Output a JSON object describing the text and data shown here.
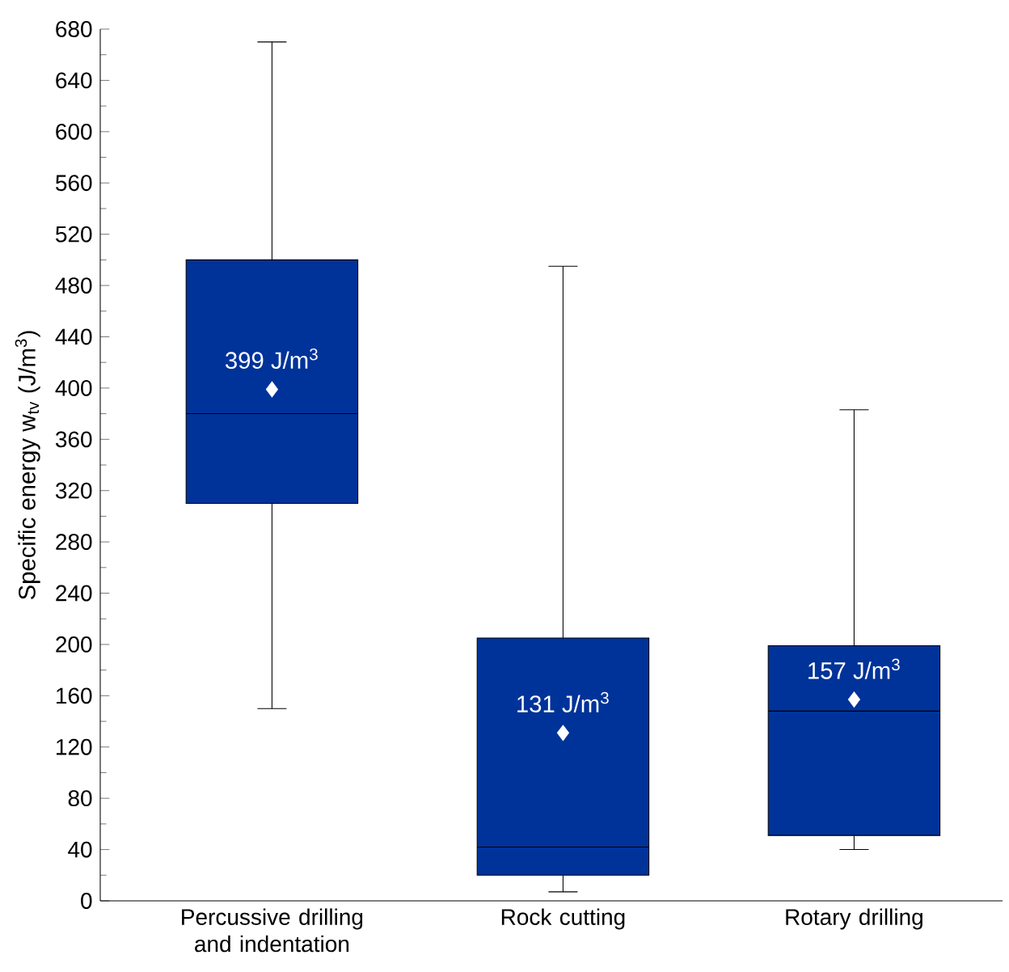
{
  "chart_data": {
    "type": "box",
    "ylabel": "Specific energy w$_{tv}$  (J/m$^{3}$)",
    "categories": [
      "Percussive drilling and indentation",
      "Rock cutting",
      "Rotary drilling"
    ],
    "color": "#003399",
    "boxes": [
      {
        "low": 150,
        "q1": 310,
        "median": 380,
        "q3": 500,
        "high": 670,
        "mean": 399
      },
      {
        "low": 7,
        "q1": 20,
        "median": 42,
        "q3": 205,
        "high": 495,
        "mean": 131
      },
      {
        "low": 40,
        "q1": 51,
        "median": 148,
        "q3": 199,
        "high": 383,
        "mean": 157
      }
    ],
    "annotations": [
      "399 J/m$^{3}$",
      "131 J/m$^{3}$",
      "157 J/m$^{3}$"
    ],
    "ylim": [
      0,
      680
    ],
    "yticks": [
      0,
      40,
      80,
      120,
      160,
      200,
      240,
      280,
      320,
      360,
      400,
      440,
      480,
      520,
      560,
      600,
      640,
      680
    ]
  }
}
